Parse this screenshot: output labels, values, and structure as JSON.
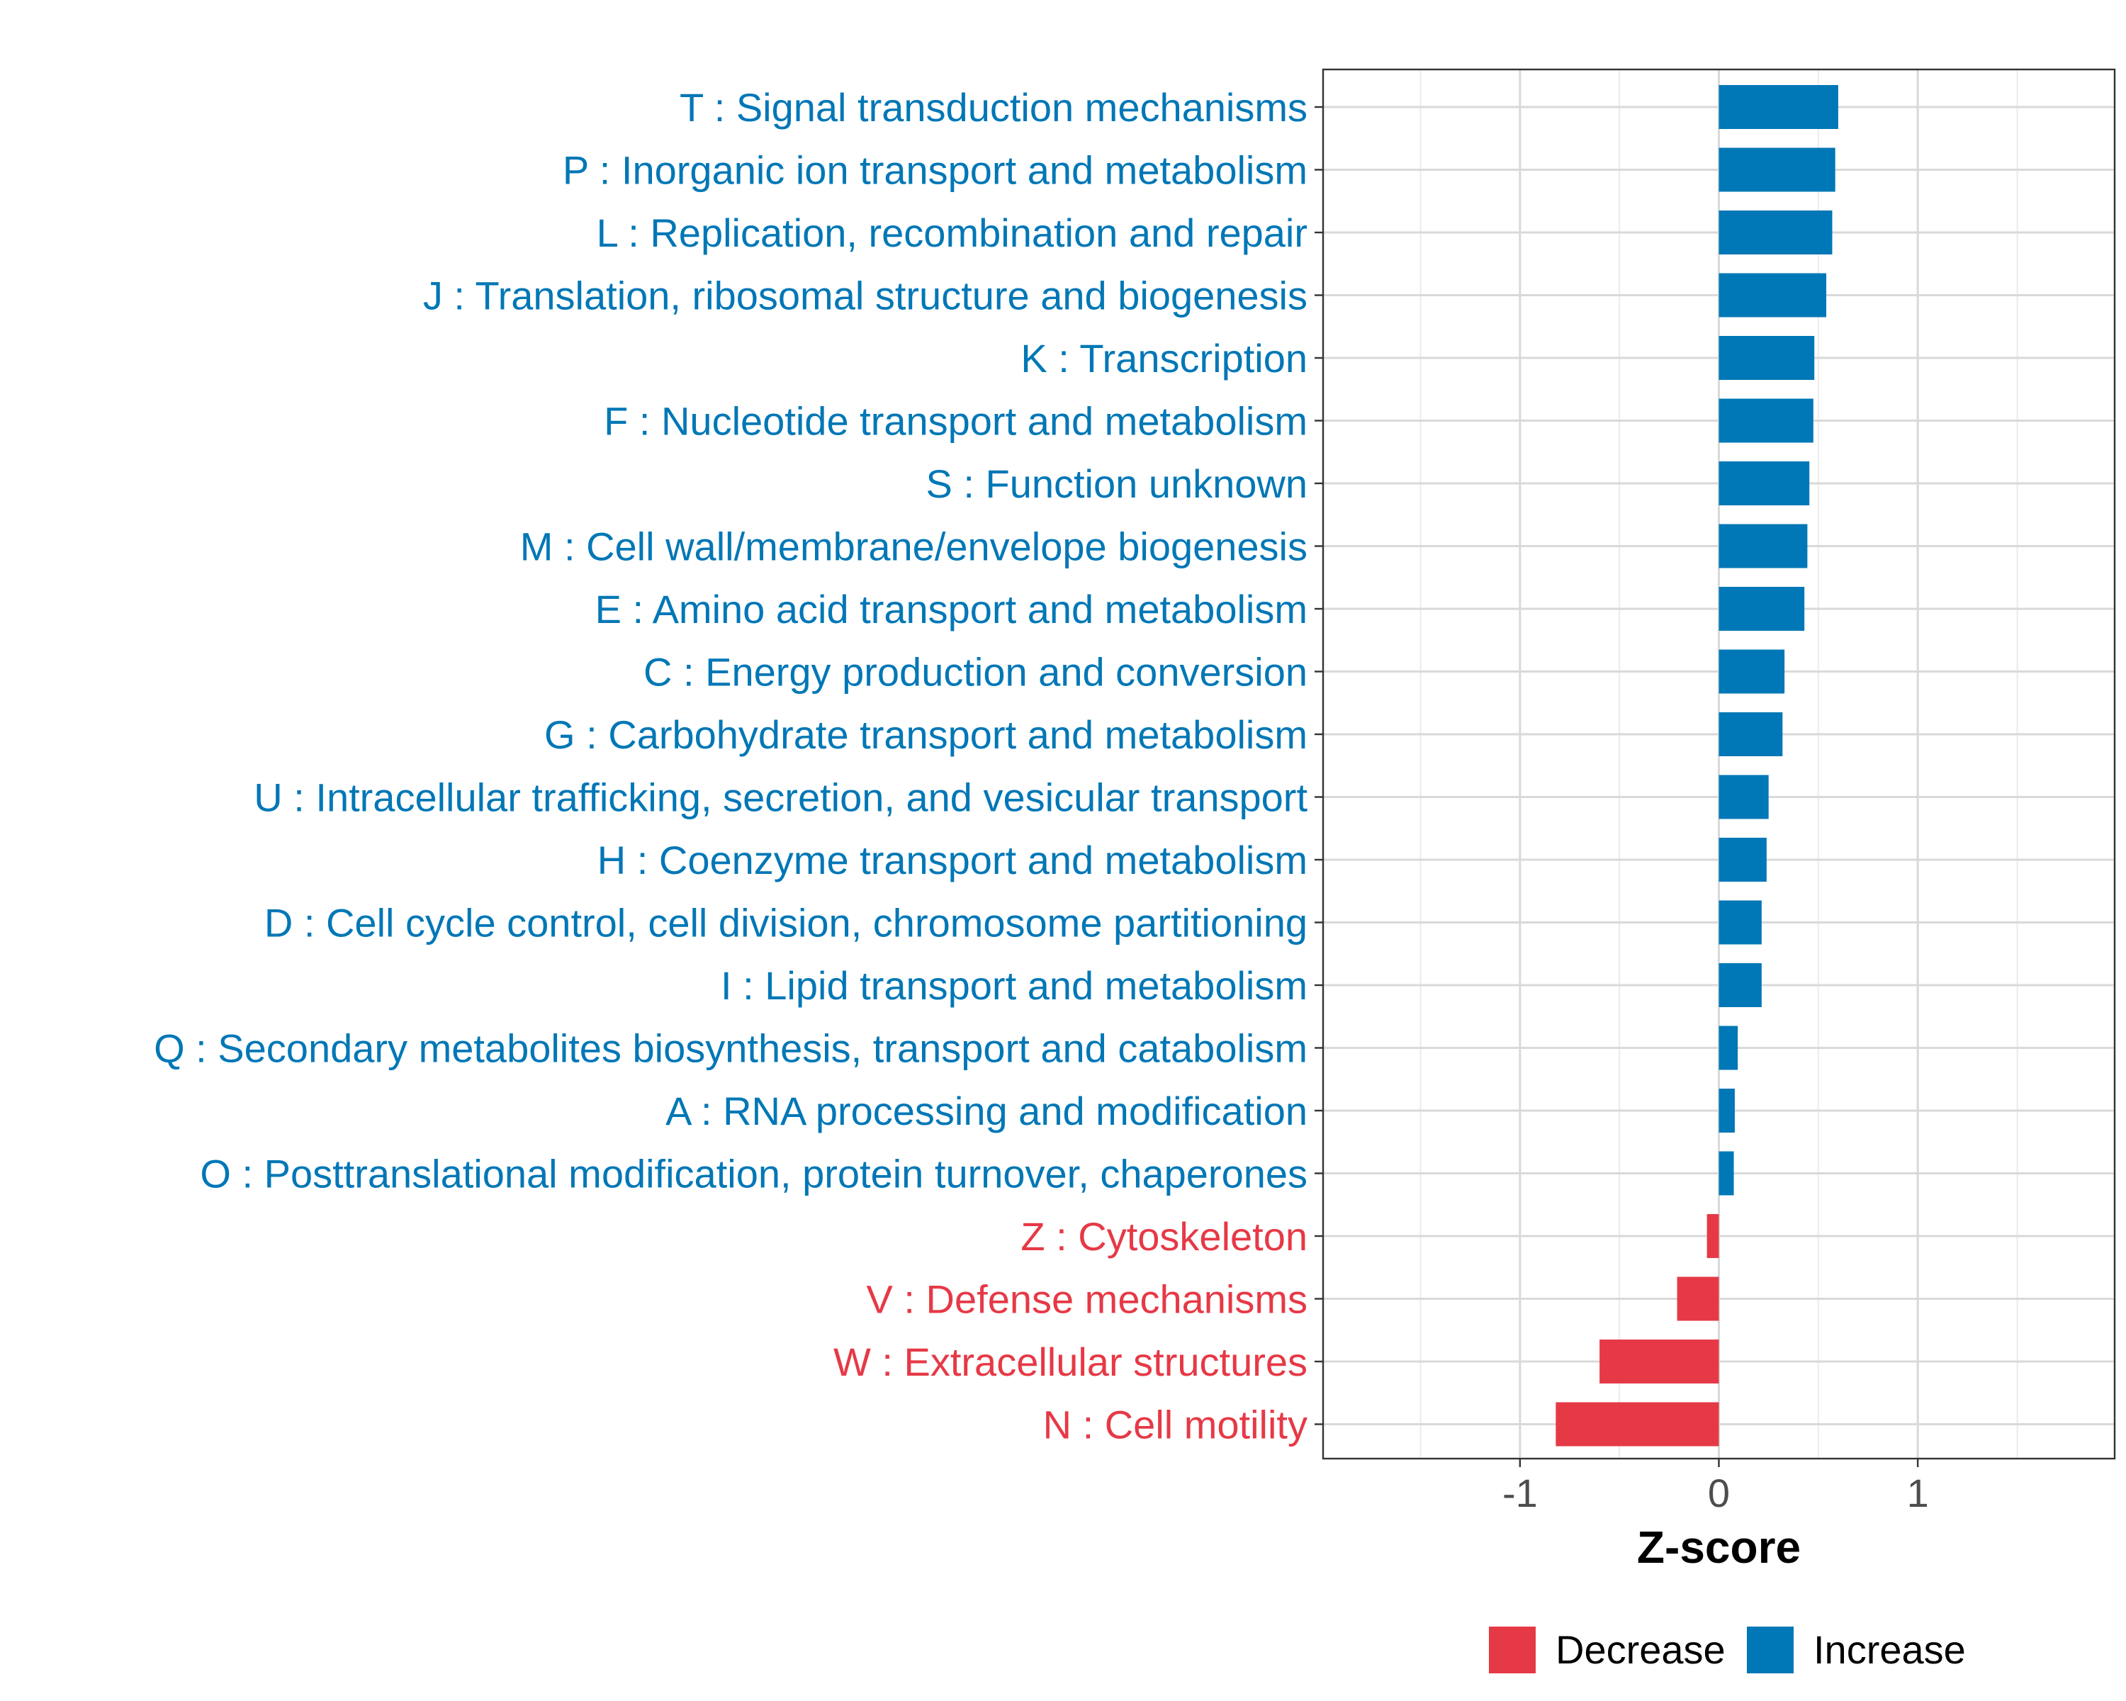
{
  "chart_data": {
    "type": "bar",
    "orientation": "horizontal",
    "xlabel": "Z-score",
    "xlim": [
      -1.99,
      1.99
    ],
    "xticks": [
      -1,
      0,
      1
    ],
    "xtick_labels": [
      "-1",
      "0",
      "1"
    ],
    "grid": true,
    "legend": {
      "position": "bottom",
      "items": [
        {
          "label": "Decrease",
          "color": "#E63946"
        },
        {
          "label": "Increase",
          "color": "#0077B6"
        }
      ]
    },
    "categories": [
      {
        "label": "T : Signal transduction mechanisms",
        "value": 0.6,
        "group": "Increase"
      },
      {
        "label": "P : Inorganic ion transport and metabolism",
        "value": 0.585,
        "group": "Increase"
      },
      {
        "label": "L : Replication, recombination and repair",
        "value": 0.57,
        "group": "Increase"
      },
      {
        "label": "J : Translation, ribosomal structure and biogenesis",
        "value": 0.54,
        "group": "Increase"
      },
      {
        "label": "K : Transcription",
        "value": 0.48,
        "group": "Increase"
      },
      {
        "label": "F : Nucleotide transport and metabolism",
        "value": 0.475,
        "group": "Increase"
      },
      {
        "label": "S : Function unknown",
        "value": 0.455,
        "group": "Increase"
      },
      {
        "label": "M : Cell wall/membrane/envelope biogenesis",
        "value": 0.445,
        "group": "Increase"
      },
      {
        "label": "E : Amino acid transport and metabolism",
        "value": 0.43,
        "group": "Increase"
      },
      {
        "label": "C : Energy production and conversion",
        "value": 0.33,
        "group": "Increase"
      },
      {
        "label": "G : Carbohydrate transport and metabolism",
        "value": 0.32,
        "group": "Increase"
      },
      {
        "label": "U : Intracellular trafficking, secretion, and vesicular transport",
        "value": 0.25,
        "group": "Increase"
      },
      {
        "label": "H : Coenzyme transport and metabolism",
        "value": 0.24,
        "group": "Increase"
      },
      {
        "label": "D : Cell cycle control, cell division, chromosome partitioning",
        "value": 0.215,
        "group": "Increase"
      },
      {
        "label": "I : Lipid transport and metabolism",
        "value": 0.215,
        "group": "Increase"
      },
      {
        "label": "Q : Secondary metabolites biosynthesis, transport and catabolism",
        "value": 0.095,
        "group": "Increase"
      },
      {
        "label": "A : RNA processing and modification",
        "value": 0.08,
        "group": "Increase"
      },
      {
        "label": "O : Posttranslational modification, protein turnover, chaperones",
        "value": 0.075,
        "group": "Increase"
      },
      {
        "label": "Z : Cytoskeleton",
        "value": -0.06,
        "group": "Decrease"
      },
      {
        "label": "V : Defense mechanisms",
        "value": -0.21,
        "group": "Decrease"
      },
      {
        "label": "W : Extracellular structures",
        "value": -0.6,
        "group": "Decrease"
      },
      {
        "label": "N : Cell motility",
        "value": -0.82,
        "group": "Decrease"
      }
    ]
  }
}
